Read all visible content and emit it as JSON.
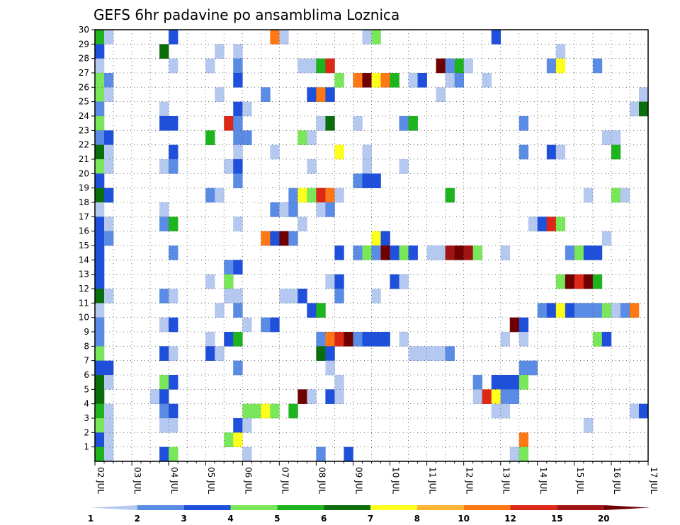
{
  "chart_data": {
    "type": "heatmap",
    "title": "GEFS 6hr padavine po ansamblima Loznica",
    "x_labels": [
      "02 JUL",
      "03 JUL",
      "04 JUL",
      "05 JUL",
      "06 JUL",
      "07 JUL",
      "08 JUL",
      "09 JUL",
      "10 JUL",
      "11 JUL",
      "12 JUL",
      "13 JUL",
      "14 JUL",
      "15 JUL",
      "16 JUL",
      "17 JUL"
    ],
    "y_labels": [
      "1",
      "2",
      "3",
      "4",
      "5",
      "6",
      "7",
      "8",
      "9",
      "10",
      "11",
      "12",
      "13",
      "14",
      "15",
      "16",
      "17",
      "18",
      "19",
      "20",
      "21",
      "22",
      "23",
      "24",
      "25",
      "26",
      "27",
      "28",
      "29",
      "30"
    ],
    "xlim": [
      0,
      60
    ],
    "ylim": [
      0,
      30
    ],
    "grid": true,
    "legend": {
      "placement": "bottom",
      "labels": [
        "1",
        "2",
        "3",
        "4",
        "5",
        "6",
        "7",
        "8",
        "10",
        "12",
        "15",
        "20"
      ],
      "colors": [
        "#b4c8f0",
        "#5a8ce6",
        "#1e50dc",
        "#7ae65a",
        "#1eb41e",
        "#0a6e0a",
        "#ffff1e",
        "#ffb432",
        "#ff7814",
        "#dc2814",
        "#a01414",
        "#6e0000"
      ]
    },
    "cells": [
      [
        0,
        30,
        5
      ],
      [
        1,
        30,
        1
      ],
      [
        8,
        30,
        3
      ],
      [
        19,
        30,
        9
      ],
      [
        20,
        30,
        1
      ],
      [
        29,
        30,
        1
      ],
      [
        30,
        30,
        4
      ],
      [
        43,
        30,
        3
      ],
      [
        0,
        29,
        3
      ],
      [
        7,
        29,
        6
      ],
      [
        13,
        29,
        1
      ],
      [
        15,
        29,
        1
      ],
      [
        50,
        29,
        1
      ],
      [
        0,
        28,
        1
      ],
      [
        8,
        28,
        1
      ],
      [
        12,
        28,
        1
      ],
      [
        15,
        28,
        2
      ],
      [
        22,
        28,
        1
      ],
      [
        23,
        28,
        1
      ],
      [
        24,
        28,
        5
      ],
      [
        25,
        28,
        10
      ],
      [
        37,
        28,
        12
      ],
      [
        38,
        28,
        2
      ],
      [
        39,
        28,
        5
      ],
      [
        40,
        28,
        1
      ],
      [
        49,
        28,
        2
      ],
      [
        50,
        28,
        7
      ],
      [
        54,
        28,
        2
      ],
      [
        0,
        27,
        4
      ],
      [
        1,
        27,
        2
      ],
      [
        15,
        27,
        3
      ],
      [
        26,
        27,
        4
      ],
      [
        28,
        27,
        9
      ],
      [
        29,
        27,
        12
      ],
      [
        30,
        27,
        7
      ],
      [
        31,
        27,
        9
      ],
      [
        32,
        27,
        5
      ],
      [
        34,
        27,
        1
      ],
      [
        35,
        27,
        3
      ],
      [
        38,
        27,
        1
      ],
      [
        39,
        27,
        2
      ],
      [
        42,
        27,
        1
      ],
      [
        0,
        26,
        4
      ],
      [
        1,
        26,
        1
      ],
      [
        13,
        26,
        1
      ],
      [
        18,
        26,
        2
      ],
      [
        23,
        26,
        3
      ],
      [
        24,
        26,
        9
      ],
      [
        25,
        26,
        3
      ],
      [
        37,
        26,
        1
      ],
      [
        59,
        26,
        1
      ],
      [
        0,
        25,
        2
      ],
      [
        7,
        25,
        1
      ],
      [
        15,
        25,
        3
      ],
      [
        16,
        25,
        1
      ],
      [
        58,
        25,
        1
      ],
      [
        59,
        25,
        6
      ],
      [
        0,
        24,
        4
      ],
      [
        7,
        24,
        3
      ],
      [
        8,
        24,
        3
      ],
      [
        14,
        24,
        10
      ],
      [
        15,
        24,
        2
      ],
      [
        24,
        24,
        1
      ],
      [
        25,
        24,
        6
      ],
      [
        28,
        24,
        1
      ],
      [
        33,
        24,
        2
      ],
      [
        34,
        24,
        5
      ],
      [
        46,
        24,
        2
      ],
      [
        0,
        23,
        2
      ],
      [
        1,
        23,
        3
      ],
      [
        12,
        23,
        5
      ],
      [
        15,
        23,
        2
      ],
      [
        16,
        23,
        2
      ],
      [
        22,
        23,
        4
      ],
      [
        23,
        23,
        1
      ],
      [
        55,
        23,
        1
      ],
      [
        56,
        23,
        1
      ],
      [
        0,
        22,
        6
      ],
      [
        1,
        22,
        1
      ],
      [
        8,
        22,
        3
      ],
      [
        15,
        22,
        1
      ],
      [
        19,
        22,
        1
      ],
      [
        26,
        22,
        7
      ],
      [
        29,
        22,
        1
      ],
      [
        46,
        22,
        2
      ],
      [
        49,
        22,
        3
      ],
      [
        50,
        22,
        1
      ],
      [
        56,
        22,
        5
      ],
      [
        0,
        21,
        4
      ],
      [
        1,
        21,
        1
      ],
      [
        7,
        21,
        1
      ],
      [
        8,
        21,
        2
      ],
      [
        14,
        21,
        1
      ],
      [
        15,
        21,
        3
      ],
      [
        23,
        21,
        1
      ],
      [
        29,
        21,
        1
      ],
      [
        33,
        21,
        1
      ],
      [
        0,
        20,
        3
      ],
      [
        15,
        20,
        2
      ],
      [
        28,
        20,
        2
      ],
      [
        29,
        20,
        3
      ],
      [
        30,
        20,
        3
      ],
      [
        0,
        19,
        6
      ],
      [
        1,
        19,
        3
      ],
      [
        12,
        19,
        2
      ],
      [
        13,
        19,
        1
      ],
      [
        21,
        19,
        2
      ],
      [
        22,
        19,
        7
      ],
      [
        23,
        19,
        4
      ],
      [
        24,
        19,
        10
      ],
      [
        25,
        19,
        9
      ],
      [
        26,
        19,
        1
      ],
      [
        38,
        19,
        5
      ],
      [
        53,
        19,
        1
      ],
      [
        56,
        19,
        4
      ],
      [
        57,
        19,
        1
      ],
      [
        0,
        18,
        1
      ],
      [
        7,
        18,
        1
      ],
      [
        19,
        18,
        2
      ],
      [
        20,
        18,
        1
      ],
      [
        21,
        18,
        2
      ],
      [
        24,
        18,
        1
      ],
      [
        25,
        18,
        2
      ],
      [
        0,
        17,
        3
      ],
      [
        1,
        17,
        1
      ],
      [
        7,
        17,
        2
      ],
      [
        8,
        17,
        5
      ],
      [
        15,
        17,
        1
      ],
      [
        22,
        17,
        1
      ],
      [
        47,
        17,
        1
      ],
      [
        48,
        17,
        3
      ],
      [
        49,
        17,
        10
      ],
      [
        50,
        17,
        4
      ],
      [
        0,
        16,
        3
      ],
      [
        1,
        16,
        2
      ],
      [
        18,
        16,
        9
      ],
      [
        19,
        16,
        3
      ],
      [
        20,
        16,
        12
      ],
      [
        21,
        16,
        2
      ],
      [
        30,
        16,
        7
      ],
      [
        31,
        16,
        3
      ],
      [
        55,
        16,
        1
      ],
      [
        0,
        15,
        3
      ],
      [
        8,
        15,
        2
      ],
      [
        26,
        15,
        3
      ],
      [
        28,
        15,
        2
      ],
      [
        29,
        15,
        4
      ],
      [
        30,
        15,
        2
      ],
      [
        31,
        15,
        12
      ],
      [
        32,
        15,
        3
      ],
      [
        33,
        15,
        4
      ],
      [
        34,
        15,
        3
      ],
      [
        36,
        15,
        1
      ],
      [
        37,
        15,
        1
      ],
      [
        38,
        15,
        11
      ],
      [
        39,
        15,
        12
      ],
      [
        40,
        15,
        11
      ],
      [
        41,
        15,
        4
      ],
      [
        44,
        15,
        1
      ],
      [
        51,
        15,
        2
      ],
      [
        52,
        15,
        4
      ],
      [
        53,
        15,
        3
      ],
      [
        54,
        15,
        3
      ],
      [
        0,
        14,
        3
      ],
      [
        14,
        14,
        2
      ],
      [
        15,
        14,
        3
      ],
      [
        0,
        13,
        3
      ],
      [
        12,
        13,
        1
      ],
      [
        14,
        13,
        4
      ],
      [
        25,
        13,
        1
      ],
      [
        26,
        13,
        3
      ],
      [
        32,
        13,
        3
      ],
      [
        33,
        13,
        1
      ],
      [
        50,
        13,
        4
      ],
      [
        51,
        13,
        12
      ],
      [
        52,
        13,
        10
      ],
      [
        53,
        13,
        12
      ],
      [
        54,
        13,
        5
      ],
      [
        0,
        12,
        6
      ],
      [
        1,
        12,
        1
      ],
      [
        7,
        12,
        2
      ],
      [
        8,
        12,
        1
      ],
      [
        14,
        12,
        1
      ],
      [
        15,
        12,
        1
      ],
      [
        20,
        12,
        1
      ],
      [
        21,
        12,
        1
      ],
      [
        22,
        12,
        3
      ],
      [
        26,
        12,
        2
      ],
      [
        30,
        12,
        1
      ],
      [
        0,
        11,
        1
      ],
      [
        13,
        11,
        1
      ],
      [
        15,
        11,
        2
      ],
      [
        23,
        11,
        3
      ],
      [
        24,
        11,
        5
      ],
      [
        48,
        11,
        2
      ],
      [
        49,
        11,
        3
      ],
      [
        50,
        11,
        7
      ],
      [
        51,
        11,
        3
      ],
      [
        52,
        11,
        2
      ],
      [
        53,
        11,
        2
      ],
      [
        54,
        11,
        2
      ],
      [
        55,
        11,
        4
      ],
      [
        56,
        11,
        1
      ],
      [
        57,
        11,
        2
      ],
      [
        58,
        11,
        9
      ],
      [
        0,
        10,
        2
      ],
      [
        7,
        10,
        1
      ],
      [
        8,
        10,
        3
      ],
      [
        16,
        10,
        1
      ],
      [
        18,
        10,
        2
      ],
      [
        19,
        10,
        3
      ],
      [
        45,
        10,
        12
      ],
      [
        46,
        10,
        3
      ],
      [
        0,
        9,
        2
      ],
      [
        12,
        9,
        1
      ],
      [
        14,
        9,
        3
      ],
      [
        15,
        9,
        5
      ],
      [
        24,
        9,
        2
      ],
      [
        25,
        9,
        9
      ],
      [
        26,
        9,
        10
      ],
      [
        27,
        9,
        12
      ],
      [
        28,
        9,
        2
      ],
      [
        29,
        9,
        3
      ],
      [
        30,
        9,
        3
      ],
      [
        31,
        9,
        3
      ],
      [
        33,
        9,
        1
      ],
      [
        44,
        9,
        1
      ],
      [
        46,
        9,
        1
      ],
      [
        54,
        9,
        4
      ],
      [
        55,
        9,
        3
      ],
      [
        0,
        8,
        4
      ],
      [
        7,
        8,
        3
      ],
      [
        8,
        8,
        1
      ],
      [
        12,
        8,
        3
      ],
      [
        13,
        8,
        1
      ],
      [
        24,
        8,
        6
      ],
      [
        25,
        8,
        3
      ],
      [
        34,
        8,
        1
      ],
      [
        35,
        8,
        1
      ],
      [
        36,
        8,
        1
      ],
      [
        37,
        8,
        1
      ],
      [
        38,
        8,
        2
      ],
      [
        0,
        7,
        3
      ],
      [
        1,
        7,
        3
      ],
      [
        15,
        7,
        2
      ],
      [
        25,
        7,
        1
      ],
      [
        46,
        7,
        2
      ],
      [
        47,
        7,
        2
      ],
      [
        0,
        6,
        6
      ],
      [
        1,
        6,
        1
      ],
      [
        7,
        6,
        4
      ],
      [
        8,
        6,
        3
      ],
      [
        26,
        6,
        1
      ],
      [
        41,
        6,
        2
      ],
      [
        43,
        6,
        3
      ],
      [
        44,
        6,
        3
      ],
      [
        45,
        6,
        3
      ],
      [
        46,
        6,
        4
      ],
      [
        0,
        5,
        6
      ],
      [
        6,
        5,
        1
      ],
      [
        7,
        5,
        3
      ],
      [
        22,
        5,
        12
      ],
      [
        23,
        5,
        1
      ],
      [
        25,
        5,
        3
      ],
      [
        26,
        5,
        1
      ],
      [
        41,
        5,
        1
      ],
      [
        42,
        5,
        10
      ],
      [
        43,
        5,
        7
      ],
      [
        44,
        5,
        2
      ],
      [
        45,
        5,
        2
      ],
      [
        0,
        4,
        5
      ],
      [
        1,
        4,
        1
      ],
      [
        7,
        4,
        2
      ],
      [
        8,
        4,
        3
      ],
      [
        16,
        4,
        4
      ],
      [
        17,
        4,
        4
      ],
      [
        18,
        4,
        7
      ],
      [
        19,
        4,
        4
      ],
      [
        21,
        4,
        5
      ],
      [
        43,
        4,
        1
      ],
      [
        44,
        4,
        1
      ],
      [
        58,
        4,
        1
      ],
      [
        59,
        4,
        3
      ],
      [
        0,
        3,
        4
      ],
      [
        1,
        3,
        1
      ],
      [
        7,
        3,
        1
      ],
      [
        8,
        3,
        1
      ],
      [
        15,
        3,
        3
      ],
      [
        16,
        3,
        1
      ],
      [
        53,
        3,
        1
      ],
      [
        0,
        2,
        3
      ],
      [
        1,
        2,
        1
      ],
      [
        14,
        2,
        4
      ],
      [
        15,
        2,
        7
      ],
      [
        46,
        2,
        9
      ],
      [
        0,
        1,
        5
      ],
      [
        1,
        1,
        1
      ],
      [
        7,
        1,
        3
      ],
      [
        8,
        1,
        4
      ],
      [
        16,
        1,
        1
      ],
      [
        24,
        1,
        2
      ],
      [
        27,
        1,
        3
      ],
      [
        45,
        1,
        1
      ],
      [
        46,
        1,
        4
      ]
    ]
  }
}
